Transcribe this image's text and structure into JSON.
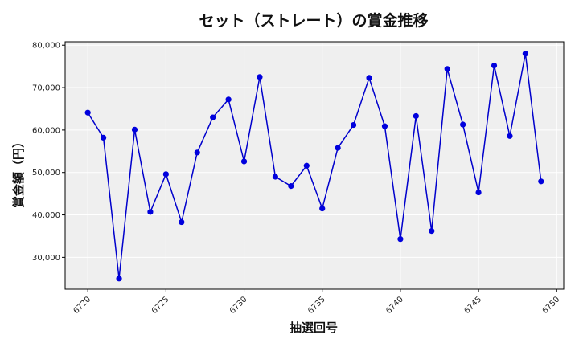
{
  "chart_data": {
    "type": "line",
    "title": "セット（ストレート）の賞金推移",
    "xlabel": "抽選回号",
    "ylabel": "賞金額（円）",
    "xlim": [
      6718.55,
      6750.45
    ],
    "ylim": [
      22500,
      80800
    ],
    "x_ticks": [
      6720,
      6725,
      6730,
      6735,
      6740,
      6745,
      6750
    ],
    "x_tick_labels": [
      "6720",
      "6725",
      "6730",
      "6735",
      "6740",
      "6745",
      "6750"
    ],
    "y_ticks": [
      30000,
      40000,
      50000,
      60000,
      70000,
      80000
    ],
    "y_tick_labels": [
      "30,000",
      "40,000",
      "50,000",
      "60,000",
      "70,000",
      "80,000"
    ],
    "grid": true,
    "colors": {
      "line": "#0000cc",
      "marker": "#0000dd",
      "plot_bg": "#efefef",
      "grid": "#ffffff"
    },
    "x": [
      6720,
      6721,
      6722,
      6723,
      6724,
      6725,
      6726,
      6727,
      6728,
      6729,
      6730,
      6731,
      6732,
      6733,
      6734,
      6735,
      6736,
      6737,
      6738,
      6739,
      6740,
      6741,
      6742,
      6743,
      6744,
      6745,
      6746,
      6747,
      6748,
      6749
    ],
    "series": [
      {
        "values": [
          64100,
          58200,
          25000,
          60100,
          40700,
          49600,
          38300,
          54700,
          63000,
          67200,
          52600,
          72500,
          49000,
          46800,
          51600,
          41500,
          55800,
          61200,
          72300,
          60900,
          34300,
          63300,
          36200,
          74400,
          61300,
          45300,
          75200,
          58600,
          78000,
          47900
        ]
      }
    ]
  }
}
